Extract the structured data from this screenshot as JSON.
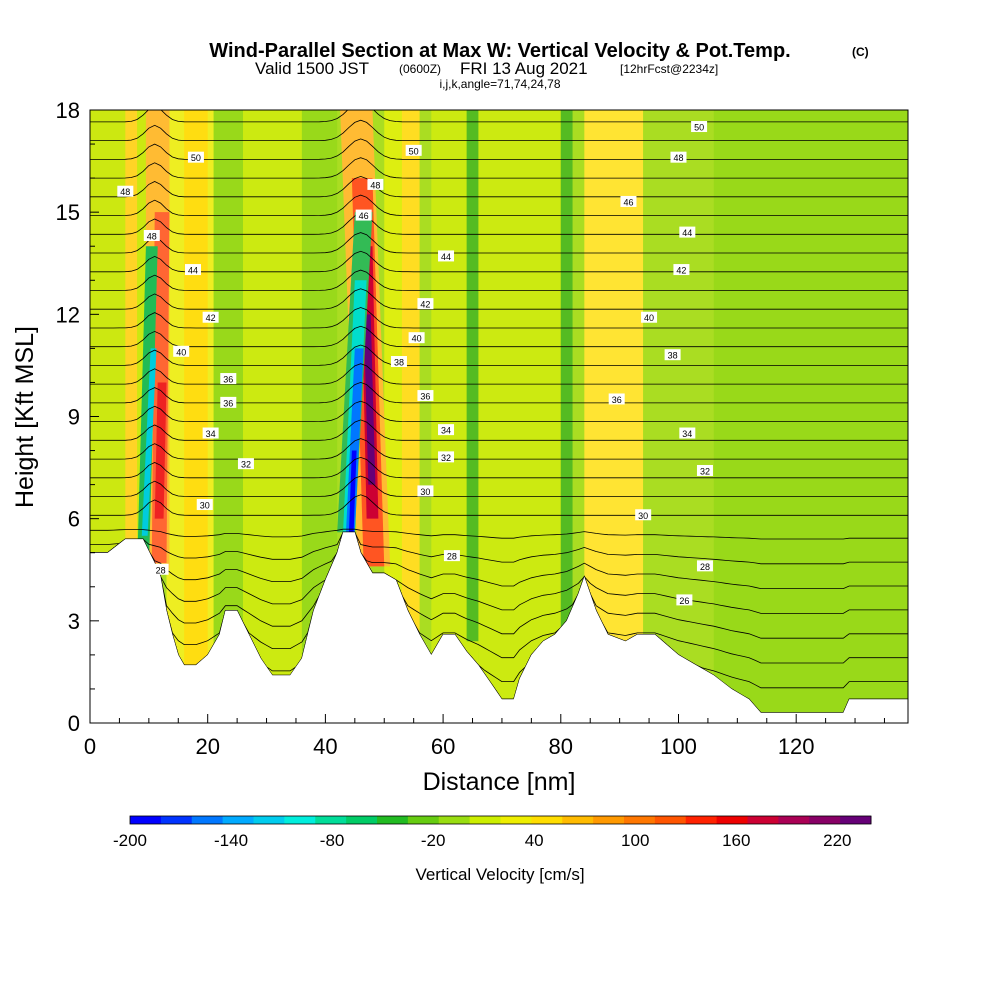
{
  "title": {
    "main": "Wind-Parallel Section at Max W: Vertical Velocity & Pot.Temp.",
    "copyright": "(C)",
    "valid_a": "Valid 1500 JST",
    "valid_b": "(0600Z)",
    "valid_c": "FRI 13 Aug 2021",
    "valid_d": "[12hrFcst@2234z]",
    "ijk": "i,j,k,angle=71,74,24,78"
  },
  "chart_data": {
    "type": "heatmap",
    "xlabel": "Distance [nm]",
    "ylabel": "Height [Kft MSL]",
    "xlim": [
      0,
      139
    ],
    "ylim": [
      0,
      18
    ],
    "x_ticks": [
      "0",
      "20",
      "40",
      "60",
      "80",
      "100",
      "120"
    ],
    "y_ticks": [
      "0",
      "3",
      "6",
      "9",
      "12",
      "15",
      "18"
    ],
    "colorbar": {
      "label": "Vertical Velocity [cm/s]",
      "range": [
        -200,
        240
      ],
      "step": 20,
      "tick_labels": [
        "-200",
        "-140",
        "-80",
        "-20",
        "40",
        "100",
        "160",
        "220"
      ],
      "colors": [
        "#0000ff",
        "#0033ff",
        "#0077ff",
        "#00aaff",
        "#00ccee",
        "#00eedd",
        "#00dd99",
        "#00cc66",
        "#22bb22",
        "#66cc11",
        "#99dd11",
        "#ccee00",
        "#eeee00",
        "#ffdd00",
        "#ffbb00",
        "#ff9900",
        "#ff7700",
        "#ff5500",
        "#ff2200",
        "#ee0000",
        "#cc0033",
        "#aa0055",
        "#880066",
        "#660077"
      ]
    },
    "potential_temperature_contours": {
      "unit": "C",
      "labels": [
        {
          "text": "50",
          "x": 18,
          "y": 16.6
        },
        {
          "text": "48",
          "x": 6,
          "y": 15.6
        },
        {
          "text": "48",
          "x": 10.5,
          "y": 14.3
        },
        {
          "text": "44",
          "x": 17.5,
          "y": 13.3
        },
        {
          "text": "42",
          "x": 20.5,
          "y": 11.9
        },
        {
          "text": "40",
          "x": 15.5,
          "y": 10.9
        },
        {
          "text": "36",
          "x": 23.5,
          "y": 10.1
        },
        {
          "text": "36",
          "x": 23.5,
          "y": 9.4
        },
        {
          "text": "34",
          "x": 20.5,
          "y": 8.5
        },
        {
          "text": "32",
          "x": 26.5,
          "y": 7.6
        },
        {
          "text": "30",
          "x": 19.5,
          "y": 6.4
        },
        {
          "text": "28",
          "x": 12,
          "y": 4.5
        },
        {
          "text": "50",
          "x": 55,
          "y": 16.8
        },
        {
          "text": "48",
          "x": 48.5,
          "y": 15.8
        },
        {
          "text": "46",
          "x": 46.5,
          "y": 14.9
        },
        {
          "text": "44",
          "x": 60.5,
          "y": 13.7
        },
        {
          "text": "42",
          "x": 57,
          "y": 12.3
        },
        {
          "text": "40",
          "x": 55.5,
          "y": 11.3
        },
        {
          "text": "38",
          "x": 52.5,
          "y": 10.6
        },
        {
          "text": "36",
          "x": 57,
          "y": 9.6
        },
        {
          "text": "34",
          "x": 60.5,
          "y": 8.6
        },
        {
          "text": "32",
          "x": 60.5,
          "y": 7.8
        },
        {
          "text": "30",
          "x": 57,
          "y": 6.8
        },
        {
          "text": "28",
          "x": 61.5,
          "y": 4.9
        },
        {
          "text": "50",
          "x": 103.5,
          "y": 17.5
        },
        {
          "text": "48",
          "x": 100,
          "y": 16.6
        },
        {
          "text": "46",
          "x": 91.5,
          "y": 15.3
        },
        {
          "text": "44",
          "x": 101.5,
          "y": 14.4
        },
        {
          "text": "42",
          "x": 100.5,
          "y": 13.3
        },
        {
          "text": "40",
          "x": 95,
          "y": 11.9
        },
        {
          "text": "38",
          "x": 99,
          "y": 10.8
        },
        {
          "text": "36",
          "x": 89.5,
          "y": 9.5
        },
        {
          "text": "34",
          "x": 101.5,
          "y": 8.5
        },
        {
          "text": "32",
          "x": 104.5,
          "y": 7.4
        },
        {
          "text": "30",
          "x": 94,
          "y": 6.1
        },
        {
          "text": "28",
          "x": 104.5,
          "y": 4.6
        },
        {
          "text": "26",
          "x": 101,
          "y": 3.6
        }
      ]
    },
    "terrain_top_kft": [
      [
        0,
        5.0
      ],
      [
        3,
        5.0
      ],
      [
        6,
        5.4
      ],
      [
        9,
        5.4
      ],
      [
        11,
        4.7
      ],
      [
        12,
        4.3
      ],
      [
        13,
        3.3
      ],
      [
        14,
        2.6
      ],
      [
        15,
        2.0
      ],
      [
        16,
        1.7
      ],
      [
        18,
        1.7
      ],
      [
        20,
        2.0
      ],
      [
        22,
        2.6
      ],
      [
        23,
        3.3
      ],
      [
        25,
        3.3
      ],
      [
        27,
        2.6
      ],
      [
        29,
        1.9
      ],
      [
        31,
        1.4
      ],
      [
        34,
        1.4
      ],
      [
        36,
        1.9
      ],
      [
        37,
        2.6
      ],
      [
        38,
        3.3
      ],
      [
        40,
        4.2
      ],
      [
        42,
        5.0
      ],
      [
        43,
        5.6
      ],
      [
        45,
        5.6
      ],
      [
        46,
        5.0
      ],
      [
        48,
        4.4
      ],
      [
        50,
        4.4
      ],
      [
        52,
        4.2
      ],
      [
        54,
        3.3
      ],
      [
        56,
        2.6
      ],
      [
        58,
        2.0
      ],
      [
        60,
        2.6
      ],
      [
        62,
        2.6
      ],
      [
        64,
        2.1
      ],
      [
        66,
        1.7
      ],
      [
        68,
        1.2
      ],
      [
        70,
        0.7
      ],
      [
        72,
        0.7
      ],
      [
        73,
        1.3
      ],
      [
        75,
        2.0
      ],
      [
        77,
        2.4
      ],
      [
        79,
        2.6
      ],
      [
        81,
        3.0
      ],
      [
        83,
        3.8
      ],
      [
        84,
        4.3
      ],
      [
        86,
        3.3
      ],
      [
        88,
        2.6
      ],
      [
        91,
        2.4
      ],
      [
        93,
        2.6
      ],
      [
        96,
        2.6
      ],
      [
        98,
        2.3
      ],
      [
        100,
        2.0
      ],
      [
        103,
        1.7
      ],
      [
        106,
        1.4
      ],
      [
        109,
        1.0
      ],
      [
        112,
        0.7
      ],
      [
        114,
        0.3
      ],
      [
        128,
        0.3
      ],
      [
        129,
        0.7
      ],
      [
        135,
        0.7
      ],
      [
        139,
        0.7
      ]
    ]
  }
}
